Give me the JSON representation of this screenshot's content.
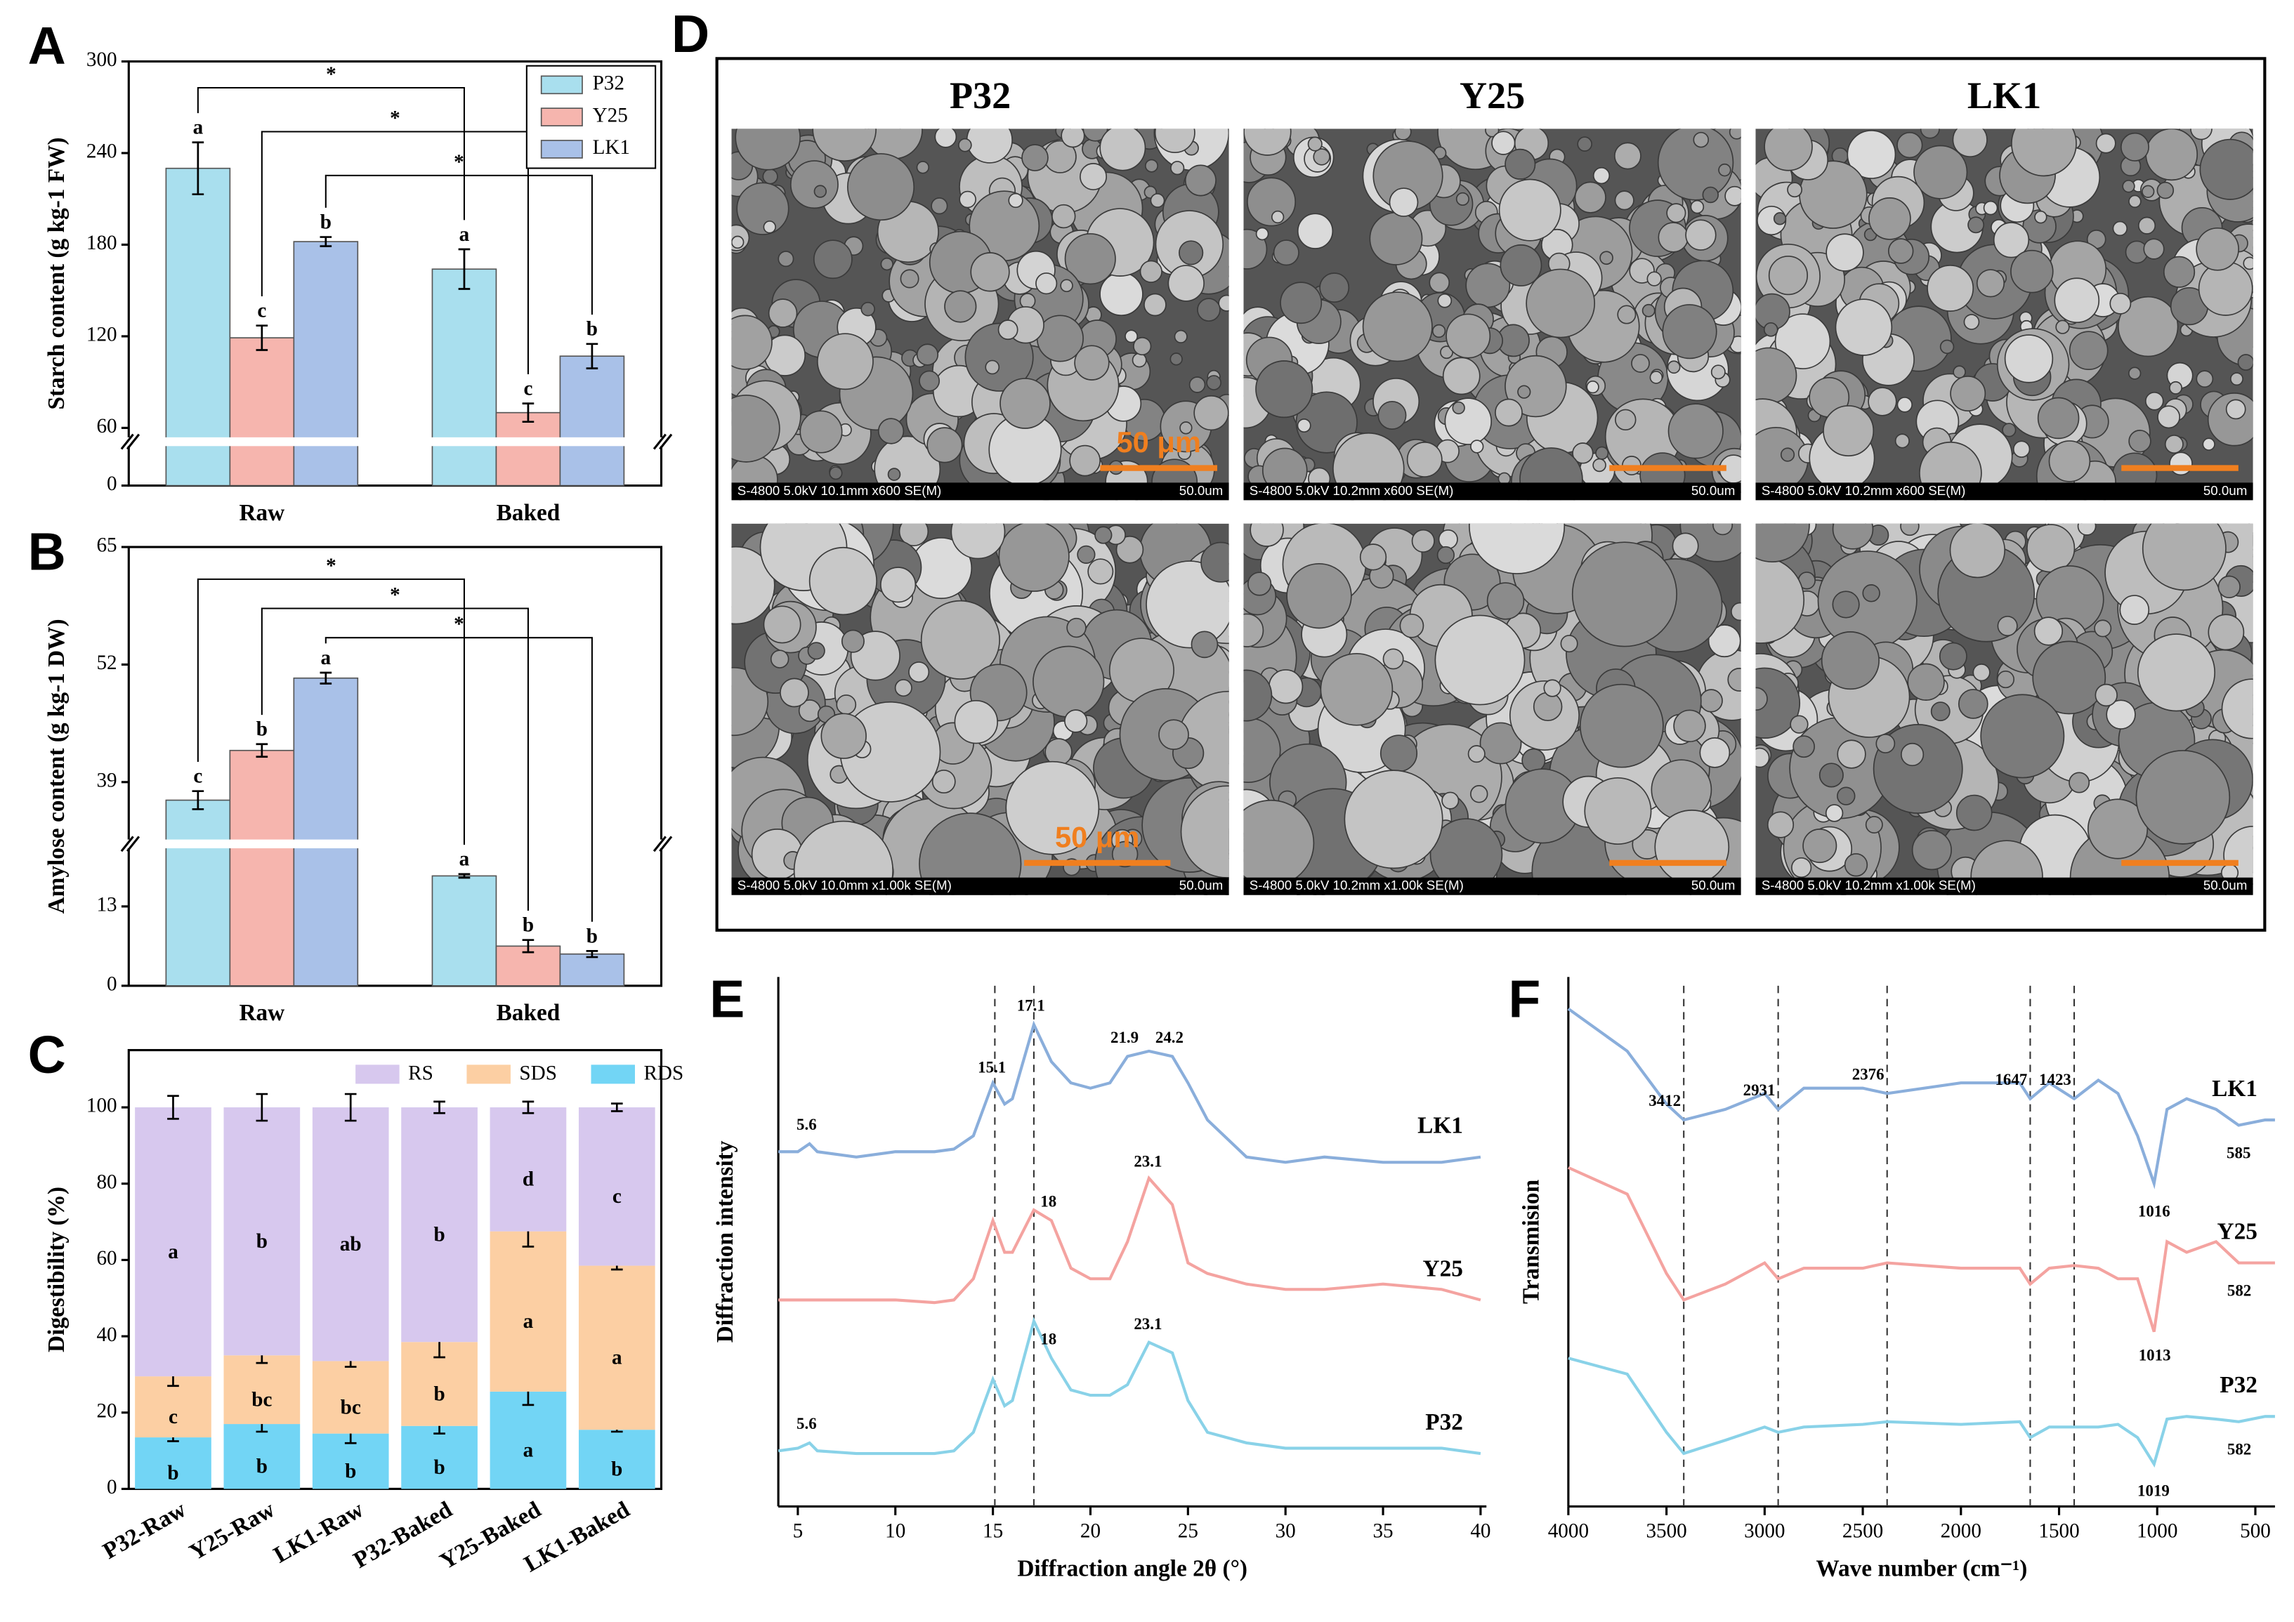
{
  "chart_data": [
    {
      "type": "bar",
      "label": "A",
      "ylabel": "Starch content (g kg-1 FW)",
      "categories": [
        "Raw",
        "Baked"
      ],
      "series": [
        {
          "name": "P32",
          "color": "#a9dfee",
          "values": [
            230,
            164
          ],
          "errors": [
            17,
            13
          ],
          "letters": [
            "a",
            "a"
          ]
        },
        {
          "name": "Y25",
          "color": "#f6b5ae",
          "values": [
            119,
            70
          ],
          "errors": [
            8,
            6
          ],
          "letters": [
            "c",
            "c"
          ]
        },
        {
          "name": "LK1",
          "color": "#a9c1e8",
          "values": [
            182,
            107
          ],
          "errors": [
            3,
            8
          ],
          "letters": [
            "b",
            "b"
          ]
        }
      ],
      "ylim": [
        0,
        300
      ],
      "ybreak": [
        25,
        50
      ],
      "yticks": [
        0,
        60,
        120,
        180,
        240,
        300
      ],
      "significance": [
        "*",
        "*",
        "*"
      ]
    },
    {
      "type": "bar",
      "label": "B",
      "ylabel": "Amylose content (g kg-1 DW)",
      "categories": [
        "Raw",
        "Baked"
      ],
      "series": [
        {
          "color": "#a9dfee",
          "values": [
            37,
            18
          ],
          "errors": [
            1,
            0.3
          ],
          "letters": [
            "c",
            "a"
          ]
        },
        {
          "color": "#f6b5ae",
          "values": [
            42.5,
            6.5
          ],
          "errors": [
            0.7,
            1
          ],
          "letters": [
            "b",
            "b"
          ]
        },
        {
          "color": "#a9c1e8",
          "values": [
            50.5,
            5.2
          ],
          "errors": [
            0.6,
            0.5
          ],
          "letters": [
            "a",
            "b"
          ]
        }
      ],
      "ylim": [
        0,
        65
      ],
      "ybreak": [
        23,
        32
      ],
      "yticks": [
        0,
        13,
        39,
        52,
        65
      ],
      "significance": [
        "*",
        "*",
        "*"
      ]
    },
    {
      "type": "stacked_bar",
      "label": "C",
      "ylabel": "Digestibility (%)",
      "categories": [
        "P32-Raw",
        "Y25-Raw",
        "LK1-Raw",
        "P32-Baked",
        "Y25-Baked",
        "LK1-Baked"
      ],
      "series": [
        {
          "name": "RDS",
          "color": "#72d5f5",
          "values": [
            13.5,
            17,
            14.5,
            16.5,
            25.5,
            15.5
          ],
          "errors": [
            1,
            2,
            2.5,
            2,
            3.5,
            0.5
          ],
          "letters": [
            "b",
            "b",
            "b",
            "b",
            "a",
            "b"
          ]
        },
        {
          "name": "SDS",
          "color": "#fccfa3",
          "values": [
            16,
            18,
            19,
            22,
            42,
            43
          ],
          "errors": [
            2.5,
            2,
            1.5,
            4,
            4,
            1
          ],
          "letters": [
            "c",
            "bc",
            "bc",
            "b",
            "a",
            "a"
          ]
        },
        {
          "name": "RS",
          "color": "#d7c8ee",
          "values": [
            70.5,
            65,
            66.5,
            61.5,
            32.5,
            41.5
          ],
          "errors": [
            3,
            3.5,
            3.5,
            1.5,
            1.5,
            1
          ],
          "letters": [
            "a",
            "b",
            "ab",
            "b",
            "d",
            "c"
          ]
        }
      ],
      "ylim": [
        0,
        115
      ],
      "yticks": [
        0,
        20,
        40,
        60,
        80,
        100
      ]
    },
    {
      "type": "line",
      "label": "E",
      "xlabel": "Diffraction angle 2θ (°)",
      "ylabel": "Diffraction intensity",
      "x": [
        4,
        5,
        5.6,
        6,
        8,
        10,
        12,
        13,
        14,
        15,
        15.6,
        16,
        17.1,
        18,
        19,
        20,
        21,
        21.9,
        23,
        24.2,
        25,
        26,
        28,
        30,
        32,
        35,
        38,
        40
      ],
      "xlim": [
        4,
        40.3
      ],
      "ylim": [
        0,
        100
      ],
      "xticks": [
        5,
        10,
        15,
        20,
        25,
        30,
        35,
        40
      ],
      "vlines": [
        15.1,
        17.1
      ],
      "series": [
        {
          "name": "LK1",
          "color": "#8aaedb",
          "values": [
            67,
            67,
            68.5,
            67,
            66,
            67,
            67,
            67.5,
            70,
            80,
            76,
            77,
            91,
            84,
            80,
            79,
            80,
            85,
            86,
            85,
            80,
            73,
            66,
            65,
            66,
            65,
            65,
            66
          ],
          "peaks": [
            5.6,
            15.1,
            17.1,
            21.9,
            24.2
          ]
        },
        {
          "name": "Y25",
          "color": "#f4a3a0",
          "values": [
            39,
            39,
            39,
            39,
            39,
            39,
            38.5,
            39,
            43,
            54,
            48,
            48,
            56,
            54,
            45,
            43,
            43,
            50,
            62,
            57,
            46,
            44,
            42,
            41,
            41,
            42,
            41,
            39
          ],
          "peaks": [
            18,
            23.1
          ]
        },
        {
          "name": "P32",
          "color": "#89d2e8",
          "values": [
            10.5,
            11,
            12,
            10.5,
            10,
            10,
            10,
            10.5,
            14,
            24,
            19,
            20,
            35,
            28,
            22,
            21,
            21,
            23,
            31,
            29,
            20,
            14,
            12,
            11,
            11,
            11,
            11,
            10
          ],
          "peaks": [
            5.6,
            18,
            23.1
          ]
        }
      ]
    },
    {
      "type": "line",
      "label": "F",
      "xlabel": "Wave number (cm⁻¹)",
      "ylabel": "Transmision",
      "x": [
        4000,
        3700,
        3500,
        3412,
        3200,
        3000,
        2931,
        2800,
        2500,
        2376,
        2000,
        1700,
        1647,
        1550,
        1423,
        1300,
        1200,
        1100,
        1016,
        950,
        850,
        700,
        585,
        450,
        400
      ],
      "xlim": [
        4000,
        400
      ],
      "ylim": [
        0,
        100
      ],
      "xticks": [
        4000,
        3500,
        3000,
        2500,
        2000,
        1500,
        1000,
        500
      ],
      "vlines": [
        3412,
        2931,
        2376,
        1647,
        1423
      ],
      "series": [
        {
          "name": "LK1",
          "color": "#8aaedb",
          "values": [
            94,
            86,
            76,
            73,
            75,
            78,
            75,
            79,
            79,
            78,
            80,
            80,
            77,
            80,
            77,
            80.5,
            78,
            70,
            61,
            75,
            77,
            75,
            72,
            73,
            73
          ],
          "peaks": [
            3412,
            2931,
            2376,
            1647,
            1423,
            1016,
            585
          ]
        },
        {
          "name": "Y25",
          "color": "#f4a3a0",
          "values": [
            64,
            59,
            44,
            39,
            42,
            46,
            43,
            45,
            45,
            46,
            45,
            45,
            42,
            45,
            45.5,
            45,
            43,
            43,
            33,
            50,
            48,
            50,
            46,
            46,
            46
          ],
          "peaks": [
            1013,
            582
          ]
        },
        {
          "name": "P32",
          "color": "#89d2e8",
          "values": [
            28,
            25,
            14,
            10,
            12.5,
            15,
            14,
            15,
            15.5,
            16,
            15.5,
            16,
            13,
            15,
            15,
            15,
            15.5,
            13,
            8,
            16.5,
            17,
            16.5,
            16,
            17,
            17
          ],
          "peaks": [
            1019,
            582
          ]
        }
      ]
    }
  ],
  "sem_panel": {
    "label": "D",
    "columns": [
      "P32",
      "Y25",
      "LK1"
    ],
    "images": [
      {
        "caption": "S-4800 5.0kV 10.1mm x600 SE(M)",
        "scale": "50.0um",
        "scale_bar": "50 μm"
      },
      {
        "caption": "S-4800 5.0kV 10.2mm x600 SE(M)",
        "scale": "50.0um"
      },
      {
        "caption": "S-4800 5.0kV 10.2mm x600 SE(M)",
        "scale": "50.0um"
      },
      {
        "caption": "S-4800 5.0kV 10.0mm x1.00k SE(M)",
        "scale": "50.0um",
        "scale_bar": "50 μm"
      },
      {
        "caption": "S-4800 5.0kV 10.2mm x1.00k SE(M)",
        "scale": "50.0um"
      },
      {
        "caption": "S-4800 5.0kV 10.2mm x1.00k SE(M)",
        "scale": "50.0um"
      }
    ]
  }
}
